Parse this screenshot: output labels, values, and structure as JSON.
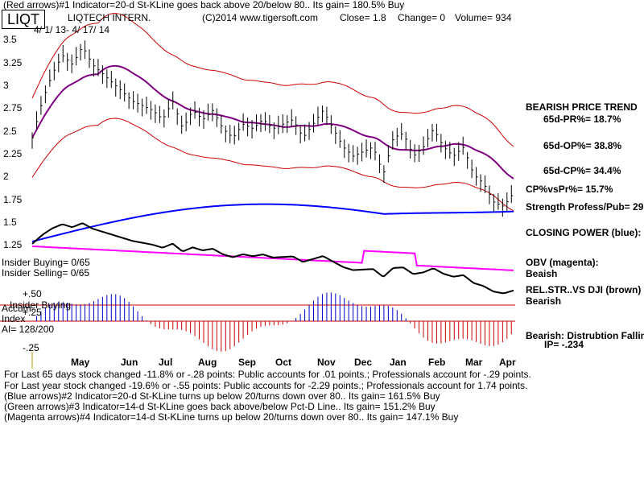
{
  "header": {
    "line1": "(Red arrows)#1 Indicator=20-d St-KLine goes back above 20/below 80.. Its gain= 180.5% Buy",
    "ticker": "LIQT",
    "company": "LIQTECH INTERN.",
    "copyright": "(C)2014 www.tigersoft.com",
    "close": "Close=  1.8",
    "change": "Change= 0",
    "volume": "Volume= 934",
    "date_range": "4/ 1/ 13-  4/ 17/ 14"
  },
  "chart_data": {
    "type": "line",
    "title": "",
    "x_tick_labels": [
      "May",
      "Jun",
      "Jul",
      "Aug",
      "Sep",
      "Oct",
      "Nov",
      "Dec",
      "Jan",
      "Feb",
      "Mar",
      "Apr"
    ],
    "y_tick_labels": [
      "3.5",
      "3.25",
      "3",
      "2.75",
      "2.5",
      "2.25",
      "2",
      "1.75",
      "1.5",
      "1.25"
    ],
    "ylim": [
      1.25,
      3.5
    ],
    "close_price_approx": [
      2.4,
      2.8,
      3.1,
      3.3,
      3.2,
      3.4,
      3.2,
      3.1,
      3.0,
      2.9,
      2.8,
      2.75,
      2.7,
      2.6,
      2.8,
      2.5,
      2.7,
      2.6,
      2.7,
      2.5,
      2.4,
      2.55,
      2.5,
      2.6,
      2.5,
      2.55,
      2.6,
      2.4,
      2.55,
      2.7,
      2.5,
      2.3,
      2.2,
      2.25,
      2.3,
      2.0,
      2.4,
      2.45,
      2.2,
      2.3,
      2.5,
      2.3,
      2.2,
      2.3,
      2.0,
      1.9,
      1.7,
      1.65,
      1.8
    ],
    "indicator_labels": {
      "insider_buying_top": "Insider Buying= 0/65",
      "insider_selling": "Insider Selling= 0/65",
      "plus50": "+.50",
      "plus25": "+.25",
      "minus25": "-.25",
      "insider_buying_mid": "Insider Buying",
      "accum_index": "Accum.",
      "index_word": "Index",
      "ai": "AI= 128/200"
    }
  },
  "sidebar": {
    "trend": "BEARISH PRICE TREND",
    "pr": "65d-PR%= 18.7%",
    "op": "65d-OP%= 38.8%",
    "cp": "65d-CP%= 34.4%",
    "cpvspr": "CP%vsPr%=  15.7%",
    "strength": "Strength Profess/Pub= 29",
    "closing_power": "CLOSING POWER (blue):",
    "obv": "OBV (magenta):",
    "obv_val": "Beaish",
    "relstr": "REL.STR..VS DJI (brown)",
    "relstr_val": "Bearish",
    "bearish_dist": "Bearish:  Distrubtion Falling",
    "ip": "IP= -.234"
  },
  "footer": {
    "l1": "For Last 65 days stock changed -11.8% or -.28 points:  Public accounts for  .01 points.;  Professionals account for -.29 points.",
    "l2": "For Last year stock changed -19.6% or -.55 points:  Public accounts for -2.29 points.;  Professionals account for  1.74 points.",
    "l3": "(Blue arrows)#2 Indicator=20-d St-KLine turns up below 20/turns down over 80.. Its gain= 161.5% Buy",
    "l4": "(Green arrows)#3 Indicator=14-d St-KLine goes back above/below Pct-D Line.. Its gain= 151.2% Buy",
    "l5": "(Magenta arrows)#4 Indicator=14-d St-KLine turns up below 20/turns down over 80.. Its gain= 147.1% Buy"
  },
  "colors": {
    "price_bars": "#000000",
    "bands": "#cc0000",
    "ma": "#800080",
    "closing_power": "#0000ff",
    "obv": "#ff00ff",
    "relstr": "#000000",
    "accum_pos": "#0000cc",
    "accum_neg": "#cc0000"
  }
}
